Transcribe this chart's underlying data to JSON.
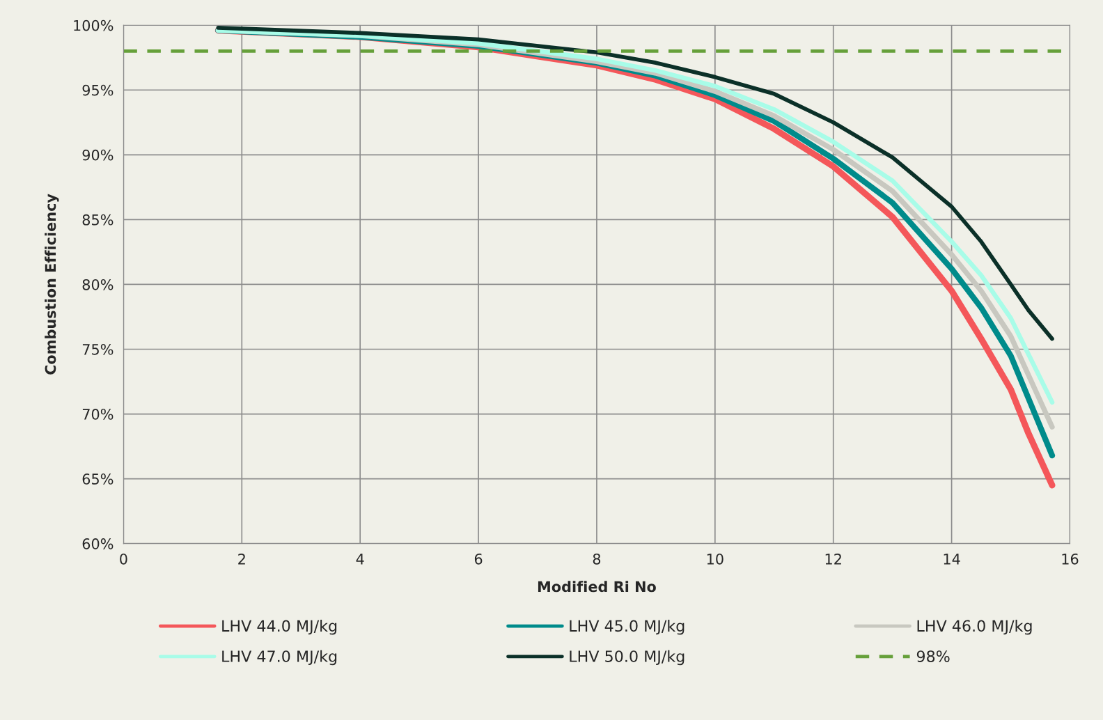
{
  "chart_data": {
    "type": "line",
    "xlabel": "Modified Ri No",
    "ylabel": "Combustion Efficiency",
    "xlim": [
      0,
      16
    ],
    "xticks": [
      0,
      2,
      4,
      6,
      8,
      10,
      12,
      14,
      16
    ],
    "ylim": [
      60,
      100
    ],
    "yticks": [
      {
        "value": 60,
        "label": "60%"
      },
      {
        "value": 65,
        "label": "65%"
      },
      {
        "value": 70,
        "label": "70%"
      },
      {
        "value": 75,
        "label": "75%"
      },
      {
        "value": 80,
        "label": "80%"
      },
      {
        "value": 85,
        "label": "85%"
      },
      {
        "value": 90,
        "label": "90%"
      },
      {
        "value": 95,
        "label": "95%"
      },
      {
        "value": 100,
        "label": "100%"
      }
    ],
    "grid": true,
    "legend": "bottom",
    "marker": "none",
    "x": [
      1.6,
      4,
      6,
      8,
      9,
      10,
      11,
      12,
      13,
      14,
      14.5,
      15,
      15.3,
      15.7
    ],
    "series": [
      {
        "name": "LHV 44.0 MJ/kg",
        "color": "#f4575a",
        "values": [
          99.6,
          99.1,
          98.3,
          96.9,
          95.8,
          94.3,
          92.0,
          89.1,
          85.2,
          79.5,
          75.8,
          71.9,
          68.5,
          64.5
        ]
      },
      {
        "name": "LHV 45.0 MJ/kg",
        "color": "#008b8b",
        "values": [
          99.6,
          99.1,
          98.4,
          97.1,
          96.1,
          94.6,
          92.6,
          89.7,
          86.3,
          81.2,
          78.2,
          74.5,
          71.2,
          66.8
        ]
      },
      {
        "name": "LHV 46.0 MJ/kg",
        "color": "#c8c8c0",
        "values": [
          99.6,
          99.2,
          98.5,
          97.2,
          96.3,
          94.9,
          93.0,
          90.4,
          87.2,
          82.3,
          79.5,
          76.0,
          73.0,
          69.0
        ]
      },
      {
        "name": "LHV 47.0 MJ/kg",
        "color": "#a8fce8",
        "values": [
          99.6,
          99.2,
          98.6,
          97.4,
          96.5,
          95.3,
          93.5,
          91.0,
          88.0,
          83.3,
          80.7,
          77.4,
          74.6,
          70.9
        ]
      },
      {
        "name": "LHV 50.0 MJ/kg",
        "color": "#0b3028",
        "values": [
          99.8,
          99.4,
          98.9,
          97.9,
          97.1,
          96.0,
          94.7,
          92.5,
          89.8,
          86.0,
          83.3,
          80.0,
          78.0,
          75.8
        ]
      },
      {
        "name": "98%",
        "color": "#66a03a",
        "line_style": "dashed",
        "x": [
          0,
          16
        ],
        "values": [
          98,
          98
        ]
      }
    ]
  }
}
